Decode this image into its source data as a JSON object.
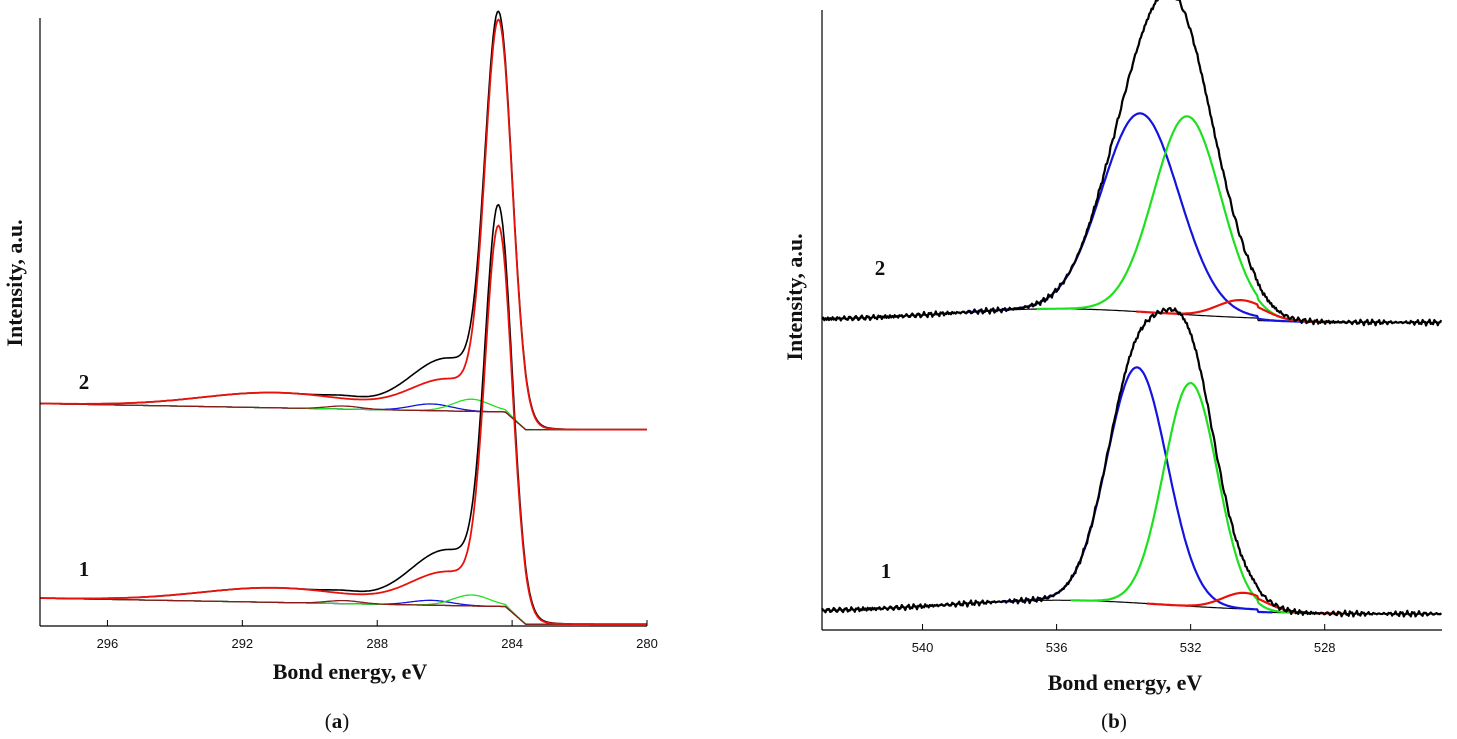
{
  "colors": {
    "measured": "#000000",
    "fit": "#e8120c",
    "background": "#000000",
    "component_blue": "#1414dc",
    "component_green": "#1ee01e",
    "component_red": "#e8120c",
    "component_brown": "#8b1a1a"
  },
  "chart_data": [
    {
      "type": "line",
      "panel": "a",
      "panel_label": "a",
      "xlabel": "Bond energy, eV",
      "ylabel": "Intensity, a.u.",
      "x_reversed": true,
      "xlim": [
        298,
        280
      ],
      "xticks": [
        296,
        292,
        288,
        284,
        280
      ],
      "ylim": [
        0,
        100
      ],
      "curve_labels": [
        "2",
        "1"
      ],
      "spectra": [
        {
          "name": "2",
          "offset": 32,
          "measured_peak": {
            "center": 284.4,
            "height": 62.5,
            "width": 0.4
          },
          "fit_peak": {
            "center": 284.4,
            "height": 62.5,
            "width": 0.4
          },
          "shoulder": {
            "center": 285.9,
            "height": 8.5,
            "width": 1.1
          },
          "plasmon": {
            "center": 291.0,
            "height": 2.5,
            "width": 2.2
          },
          "components": [
            {
              "name": "blue",
              "center": 286.4,
              "height": 1.1,
              "width": 0.6
            },
            {
              "name": "green",
              "center": 285.2,
              "height": 2.0,
              "width": 0.55
            },
            {
              "name": "brown",
              "center": 289.0,
              "height": 0.5,
              "width": 0.5
            }
          ]
        },
        {
          "name": "1",
          "offset": 0,
          "measured_peak": {
            "center": 284.4,
            "height": 62.5,
            "width": 0.4
          },
          "fit_peak": {
            "center": 284.4,
            "height": 60.5,
            "width": 0.4
          },
          "shoulder": {
            "center": 285.9,
            "height": 9.0,
            "width": 1.1
          },
          "plasmon": {
            "center": 291.0,
            "height": 2.4,
            "width": 2.2
          },
          "components": [
            {
              "name": "blue",
              "center": 286.4,
              "height": 0.8,
              "width": 0.6
            },
            {
              "name": "green",
              "center": 285.2,
              "height": 1.8,
              "width": 0.55
            },
            {
              "name": "brown",
              "center": 289.0,
              "height": 0.5,
              "width": 0.5
            }
          ]
        }
      ]
    },
    {
      "type": "line",
      "panel": "b",
      "panel_label": "b",
      "xlabel": "Bond energy, eV",
      "ylabel": "Intensity, a.u.",
      "x_reversed": true,
      "xlim": [
        543,
        524.5
      ],
      "xticks": [
        540,
        536,
        532,
        528
      ],
      "ylim": [
        0,
        100
      ],
      "curve_labels": [
        "2",
        "1"
      ],
      "spectra": [
        {
          "name": "2",
          "offset": 50,
          "components": [
            {
              "name": "blue",
              "center": 533.5,
              "height": 32,
              "width": 1.15
            },
            {
              "name": "green",
              "center": 532.1,
              "height": 32,
              "width": 1.0
            },
            {
              "name": "red",
              "center": 530.5,
              "height": 2.8,
              "width": 0.7
            }
          ]
        },
        {
          "name": "1",
          "offset": 3,
          "components": [
            {
              "name": "blue",
              "center": 533.6,
              "height": 38,
              "width": 0.9
            },
            {
              "name": "green",
              "center": 532.0,
              "height": 36,
              "width": 0.8
            },
            {
              "name": "red",
              "center": 530.4,
              "height": 2.6,
              "width": 0.65
            }
          ]
        }
      ]
    }
  ]
}
